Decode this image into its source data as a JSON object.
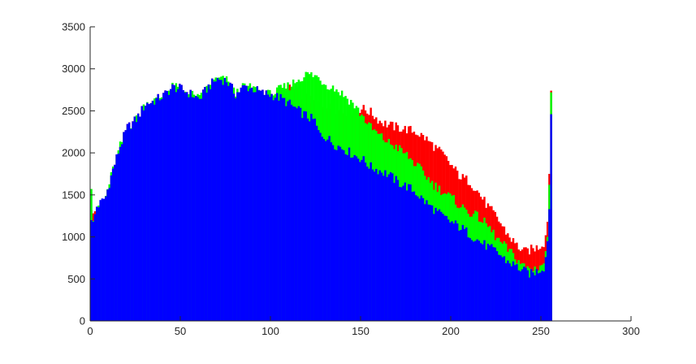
{
  "chart_data": {
    "type": "bar",
    "title": "",
    "xlabel": "",
    "ylabel": "",
    "xlim": [
      0,
      300
    ],
    "ylim": [
      0,
      3500
    ],
    "x_ticks": [
      "0",
      "50",
      "100",
      "150",
      "200",
      "250",
      "300"
    ],
    "y_ticks": [
      "0",
      "500",
      "1000",
      "1500",
      "2000",
      "2500",
      "3000",
      "3500"
    ],
    "grid": false,
    "legend": "none",
    "bins": 256,
    "series": [
      {
        "color": "#ff0000",
        "control_points": [
          [
            0,
            1320
          ],
          [
            1,
            1280
          ],
          [
            3,
            1330
          ],
          [
            5,
            1330
          ],
          [
            8,
            1480
          ],
          [
            12,
            1800
          ],
          [
            16,
            2080
          ],
          [
            20,
            2300
          ],
          [
            25,
            2400
          ],
          [
            30,
            2580
          ],
          [
            35,
            2620
          ],
          [
            40,
            2680
          ],
          [
            45,
            2780
          ],
          [
            50,
            2760
          ],
          [
            55,
            2700
          ],
          [
            60,
            2640
          ],
          [
            65,
            2790
          ],
          [
            70,
            2880
          ],
          [
            75,
            2860
          ],
          [
            80,
            2700
          ],
          [
            85,
            2790
          ],
          [
            90,
            2760
          ],
          [
            95,
            2710
          ],
          [
            100,
            2690
          ],
          [
            105,
            2720
          ],
          [
            110,
            2760
          ],
          [
            115,
            2730
          ],
          [
            120,
            2640
          ],
          [
            125,
            2590
          ],
          [
            130,
            2550
          ],
          [
            135,
            2520
          ],
          [
            140,
            2480
          ],
          [
            145,
            2500
          ],
          [
            150,
            2530
          ],
          [
            155,
            2480
          ],
          [
            160,
            2380
          ],
          [
            165,
            2330
          ],
          [
            170,
            2300
          ],
          [
            175,
            2280
          ],
          [
            180,
            2250
          ],
          [
            185,
            2180
          ],
          [
            190,
            2080
          ],
          [
            195,
            1980
          ],
          [
            200,
            1840
          ],
          [
            205,
            1710
          ],
          [
            210,
            1660
          ],
          [
            215,
            1520
          ],
          [
            220,
            1360
          ],
          [
            225,
            1230
          ],
          [
            230,
            1060
          ],
          [
            235,
            920
          ],
          [
            240,
            820
          ],
          [
            244,
            850
          ],
          [
            248,
            880
          ],
          [
            251,
            930
          ],
          [
            252,
            1020
          ],
          [
            253,
            1180
          ],
          [
            254,
            1750
          ],
          [
            255,
            2740
          ]
        ]
      },
      {
        "color": "#00ff00",
        "control_points": [
          [
            0,
            1570
          ],
          [
            1,
            1190
          ],
          [
            3,
            1310
          ],
          [
            5,
            1330
          ],
          [
            8,
            1480
          ],
          [
            12,
            1800
          ],
          [
            16,
            2080
          ],
          [
            20,
            2300
          ],
          [
            25,
            2400
          ],
          [
            30,
            2580
          ],
          [
            35,
            2620
          ],
          [
            40,
            2680
          ],
          [
            45,
            2780
          ],
          [
            50,
            2760
          ],
          [
            55,
            2700
          ],
          [
            60,
            2640
          ],
          [
            65,
            2790
          ],
          [
            70,
            2880
          ],
          [
            75,
            2860
          ],
          [
            80,
            2700
          ],
          [
            85,
            2790
          ],
          [
            90,
            2760
          ],
          [
            95,
            2710
          ],
          [
            100,
            2690
          ],
          [
            105,
            2760
          ],
          [
            110,
            2800
          ],
          [
            115,
            2880
          ],
          [
            120,
            2940
          ],
          [
            125,
            2910
          ],
          [
            130,
            2820
          ],
          [
            135,
            2770
          ],
          [
            140,
            2690
          ],
          [
            145,
            2590
          ],
          [
            150,
            2450
          ],
          [
            155,
            2300
          ],
          [
            160,
            2200
          ],
          [
            165,
            2120
          ],
          [
            170,
            2060
          ],
          [
            175,
            1970
          ],
          [
            180,
            1860
          ],
          [
            185,
            1740
          ],
          [
            190,
            1620
          ],
          [
            195,
            1540
          ],
          [
            200,
            1460
          ],
          [
            205,
            1360
          ],
          [
            210,
            1290
          ],
          [
            215,
            1230
          ],
          [
            220,
            1130
          ],
          [
            225,
            980
          ],
          [
            230,
            870
          ],
          [
            235,
            760
          ],
          [
            240,
            650
          ],
          [
            244,
            610
          ],
          [
            248,
            640
          ],
          [
            251,
            690
          ],
          [
            252,
            830
          ],
          [
            253,
            1000
          ],
          [
            254,
            1620
          ],
          [
            255,
            2720
          ]
        ]
      },
      {
        "color": "#0000ff",
        "control_points": [
          [
            0,
            1200
          ],
          [
            1,
            1180
          ],
          [
            3,
            1360
          ],
          [
            5,
            1400
          ],
          [
            8,
            1480
          ],
          [
            12,
            1800
          ],
          [
            16,
            2080
          ],
          [
            20,
            2300
          ],
          [
            25,
            2400
          ],
          [
            30,
            2580
          ],
          [
            35,
            2620
          ],
          [
            40,
            2680
          ],
          [
            45,
            2780
          ],
          [
            50,
            2760
          ],
          [
            55,
            2700
          ],
          [
            60,
            2640
          ],
          [
            65,
            2790
          ],
          [
            70,
            2880
          ],
          [
            75,
            2860
          ],
          [
            80,
            2700
          ],
          [
            85,
            2790
          ],
          [
            90,
            2760
          ],
          [
            95,
            2710
          ],
          [
            100,
            2690
          ],
          [
            105,
            2650
          ],
          [
            110,
            2580
          ],
          [
            115,
            2500
          ],
          [
            120,
            2430
          ],
          [
            124,
            2380
          ],
          [
            126,
            2240
          ],
          [
            130,
            2190
          ],
          [
            135,
            2100
          ],
          [
            140,
            2050
          ],
          [
            145,
            1980
          ],
          [
            150,
            1930
          ],
          [
            155,
            1830
          ],
          [
            160,
            1790
          ],
          [
            165,
            1740
          ],
          [
            170,
            1650
          ],
          [
            175,
            1600
          ],
          [
            180,
            1530
          ],
          [
            185,
            1420
          ],
          [
            190,
            1330
          ],
          [
            195,
            1240
          ],
          [
            200,
            1170
          ],
          [
            205,
            1110
          ],
          [
            210,
            1030
          ],
          [
            215,
            950
          ],
          [
            220,
            880
          ],
          [
            225,
            820
          ],
          [
            230,
            720
          ],
          [
            235,
            660
          ],
          [
            240,
            590
          ],
          [
            244,
            560
          ],
          [
            248,
            600
          ],
          [
            251,
            640
          ],
          [
            252,
            760
          ],
          [
            253,
            950
          ],
          [
            254,
            1330
          ],
          [
            255,
            2460
          ]
        ]
      }
    ]
  }
}
